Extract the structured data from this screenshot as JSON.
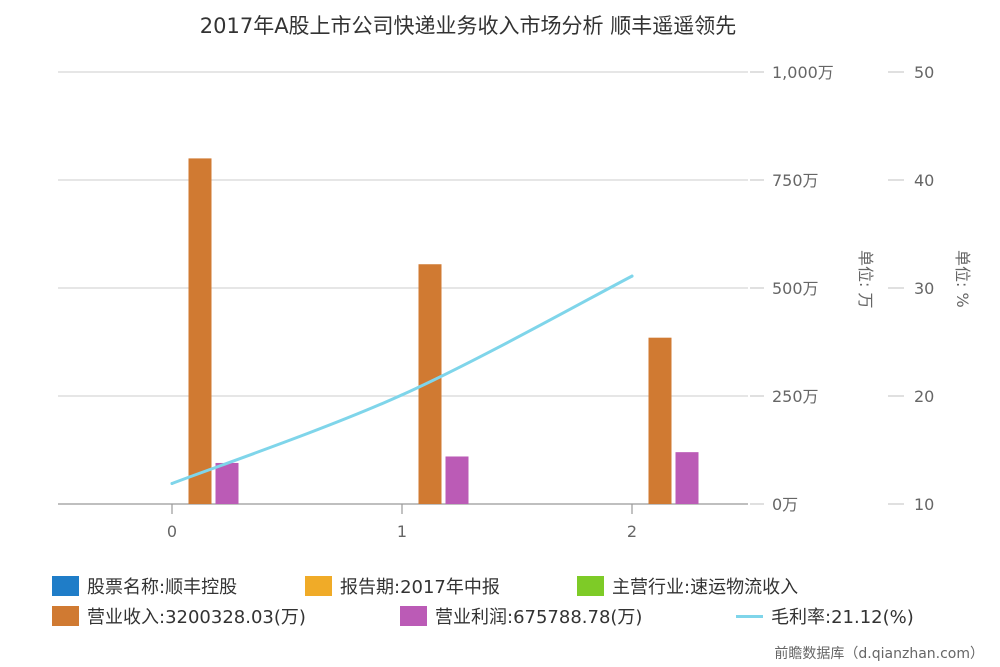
{
  "chart_data": {
    "type": "bar",
    "title": "2017年A股上市公司快递业务收入市场分析 顺丰遥遥领先",
    "categories": [
      "0",
      "1",
      "2"
    ],
    "series": [
      {
        "name": "营业收入",
        "type": "bar",
        "axis": "left",
        "color": "#d07a32",
        "values": [
          800,
          555,
          385
        ]
      },
      {
        "name": "营业利润",
        "type": "bar",
        "axis": "left",
        "color": "#bb5bb6",
        "values": [
          95,
          110,
          120
        ]
      },
      {
        "name": "毛利率",
        "type": "line",
        "axis": "right",
        "color": "#7fd5ea",
        "values": [
          11.9,
          20.1,
          31.1
        ]
      }
    ],
    "y_left": {
      "min": 0,
      "max": 1000,
      "ticks": [
        {
          "value": 0,
          "label": "0万"
        },
        {
          "value": 250,
          "label": "250万"
        },
        {
          "value": 500,
          "label": "500万"
        },
        {
          "value": 750,
          "label": "750万"
        },
        {
          "value": 1000,
          "label": "1,000万"
        }
      ],
      "unit_label": "单位: 万"
    },
    "y_right": {
      "min": 10,
      "max": 50,
      "ticks": [
        {
          "value": 10,
          "label": "10"
        },
        {
          "value": 20,
          "label": "20"
        },
        {
          "value": 30,
          "label": "30"
        },
        {
          "value": 40,
          "label": "40"
        },
        {
          "value": 50,
          "label": "50"
        }
      ],
      "unit_label": "单位: %"
    },
    "grid": true,
    "legend_position": "bottom"
  },
  "legend": [
    {
      "label": "股票名称:顺丰控股",
      "color": "#1f7dc8",
      "kind": "box"
    },
    {
      "label": "报告期:2017年中报",
      "color": "#f0ab28",
      "kind": "box"
    },
    {
      "label": "主营行业:速运物流收入",
      "color": "#7ecb27",
      "kind": "box"
    },
    {
      "label": "营业收入:3200328.03(万)",
      "color": "#d07a32",
      "kind": "box"
    },
    {
      "label": "营业利润:675788.78(万)",
      "color": "#bb5bb6",
      "kind": "box"
    },
    {
      "label": "毛利率:21.12(%)",
      "color": "#7fd5ea",
      "kind": "line"
    }
  ],
  "source": "前瞻数据库（d.qianzhan.com）"
}
